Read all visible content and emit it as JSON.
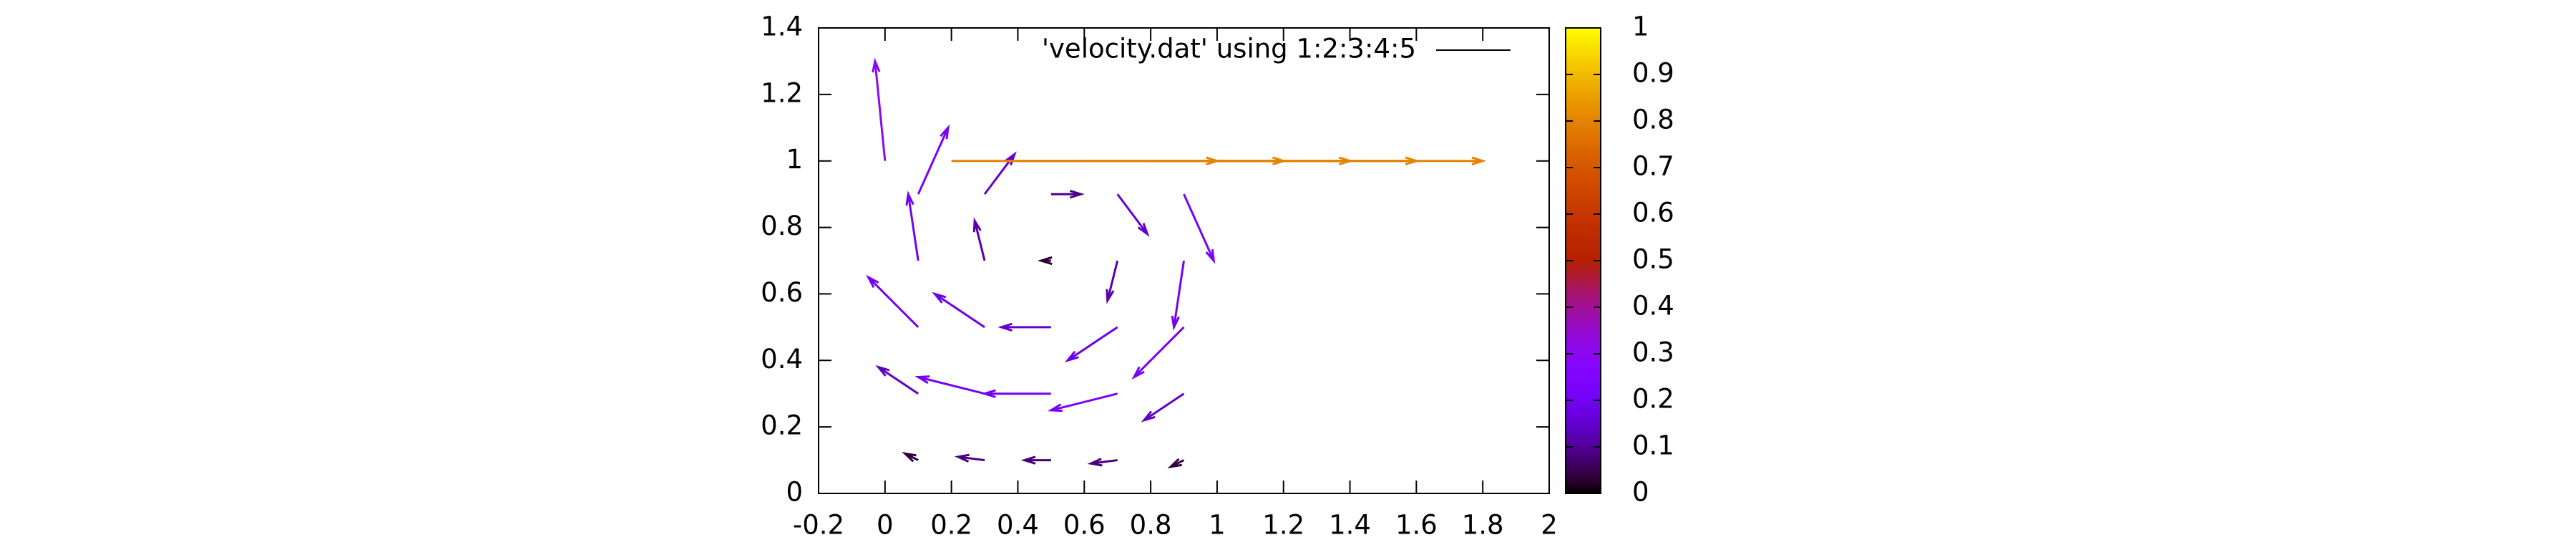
{
  "chart_data": {
    "type": "vector",
    "xlim": [
      -0.2,
      2
    ],
    "xticks": [
      -0.2,
      0,
      0.2,
      0.4,
      0.6,
      0.8,
      1,
      1.2,
      1.4,
      1.6,
      1.8,
      2
    ],
    "ylim": [
      0,
      1.4
    ],
    "yticks": [
      0,
      0.2,
      0.4,
      0.6,
      0.8,
      1,
      1.2,
      1.4
    ],
    "cblim": [
      0,
      1
    ],
    "cbticks": [
      0,
      0.1,
      0.2,
      0.3,
      0.4,
      0.5,
      0.6,
      0.7,
      0.8,
      0.9,
      1
    ],
    "legend": "top right",
    "series": [
      {
        "name": "'velocity.dat' using 1:2:3:4:5",
        "color": "#000000",
        "x": [
          0.1,
          0.3,
          0.5,
          0.7,
          0.9,
          0.1,
          0.3,
          0.5,
          0.7,
          0.9,
          0.1,
          0.3,
          0.5,
          0.7,
          0.9,
          0.1,
          0.3,
          0.5,
          0.7,
          0.9,
          0.1,
          0.3,
          0.5,
          0.7,
          0.9,
          0,
          0.2,
          0.4,
          0.6,
          0.8,
          1
        ],
        "y": [
          0.9,
          0.9,
          0.9,
          0.9,
          0.9,
          0.7,
          0.7,
          0.7,
          0.7,
          0.7,
          0.5,
          0.5,
          0.5,
          0.5,
          0.5,
          0.3,
          0.3,
          0.3,
          0.3,
          0.3,
          0.1,
          0.1,
          0.1,
          0.1,
          0.1,
          1,
          1,
          1,
          1,
          1,
          1
        ],
        "dx": [
          0.09,
          0.09,
          0.09,
          0.09,
          0.09,
          -0.03,
          -0.03,
          -0.03,
          -0.03,
          -0.03,
          -0.15,
          -0.15,
          -0.15,
          -0.15,
          -0.15,
          -0.12,
          -0.2,
          -0.2,
          -0.2,
          -0.12,
          -0.04,
          -0.08,
          -0.08,
          -0.08,
          -0.04,
          -0.03,
          0.8,
          0.8,
          0.8,
          0.8,
          0.8
        ],
        "dy": [
          0.2,
          0.12,
          0,
          -0.12,
          -0.2,
          0.2,
          0.12,
          0,
          -0.12,
          -0.2,
          0.15,
          0.1,
          0,
          -0.1,
          -0.15,
          0.08,
          0.05,
          0,
          -0.05,
          -0.08,
          0.02,
          0.01,
          0,
          -0.01,
          -0.02,
          0.3,
          0,
          0,
          0,
          0,
          0
        ],
        "values": [
          0.22,
          0.15,
          0.09,
          0.15,
          0.22,
          0.2,
          0.12,
          0.03,
          0.12,
          0.2,
          0.21,
          0.18,
          0.15,
          0.18,
          0.21,
          0.14,
          0.21,
          0.2,
          0.21,
          0.14,
          0.04,
          0.08,
          0.08,
          0.08,
          0.04,
          0.3,
          0.8,
          0.8,
          0.8,
          0.8,
          0.8
        ]
      }
    ]
  }
}
